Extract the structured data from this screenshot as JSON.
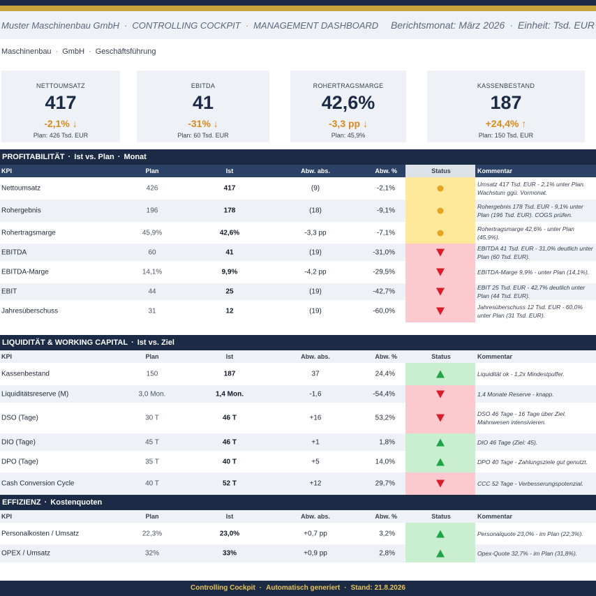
{
  "header": {
    "company": "Muster Maschinenbau GmbH",
    "app": "CONTROLLING COCKPIT",
    "view": "MANAGEMENT DASHBOARD",
    "report_month": "Berichtsmonat: März 2026",
    "unit": "Einheit: Tsd. EUR"
  },
  "breadcrumb": [
    "Maschinenbau",
    "GmbH",
    "Geschäftsführung"
  ],
  "kpi_cards": [
    {
      "label": "NETTOUMSATZ",
      "value": "417",
      "delta": "-2,1% ↓",
      "plan": "Plan: 426 Tsd. EUR"
    },
    {
      "label": "EBITDA",
      "value": "41",
      "delta": "-31% ↓",
      "plan": "Plan: 60 Tsd. EUR"
    },
    {
      "label": "ROHERTRAGSMARGE",
      "value": "42,6%",
      "delta": "-3,3 pp ↓",
      "plan": "Plan: 45,9%"
    },
    {
      "label": "KASSENBESTAND",
      "value": "187",
      "delta": "+24,4% ↑",
      "plan": "Plan: 150 Tsd. EUR"
    }
  ],
  "columns": {
    "kpi": "KPI",
    "plan": "Plan",
    "ist": "Ist",
    "abs": "Abw. abs.",
    "pct": "Abw. %",
    "status": "Status",
    "comment": "Kommentar"
  },
  "sections": {
    "profit": {
      "title": "PROFITABILITÄT",
      "sub1": "Ist vs. Plan",
      "sub2": "Monat",
      "rows": [
        {
          "kpi": "Nettoumsatz",
          "plan": "426",
          "ist": "417",
          "abs": "(9)",
          "pct": "-2,1%",
          "status": "yellow",
          "comment": "Umsatz 417 Tsd. EUR - 2,1% unter Plan. Wachstum ggü. Vormonat."
        },
        {
          "kpi": "Rohergebnis",
          "plan": "196",
          "ist": "178",
          "abs": "(18)",
          "pct": "-9,1%",
          "status": "yellow",
          "comment": "Rohergebnis 178 Tsd. EUR - 9,1% unter Plan (196 Tsd. EUR). COGS prüfen."
        },
        {
          "kpi": "Rohertragsmarge",
          "plan": "45,9%",
          "ist": "42,6%",
          "abs": "-3,3 pp",
          "pct": "-7,1%",
          "status": "yellow",
          "comment": "Rohertragsmarge 42,6% - unter Plan (45,9%)."
        },
        {
          "kpi": "EBITDA",
          "plan": "60",
          "ist": "41",
          "abs": "(19)",
          "pct": "-31,0%",
          "status": "red",
          "comment": "EBITDA 41 Tsd. EUR - 31,0% deutlich unter Plan (60 Tsd. EUR)."
        },
        {
          "kpi": "EBITDA-Marge",
          "plan": "14,1%",
          "ist": "9,9%",
          "abs": "-4,2 pp",
          "pct": "-29,5%",
          "status": "red",
          "comment": "EBITDA-Marge 9,9% - unter Plan (14,1%)."
        },
        {
          "kpi": "EBIT",
          "plan": "44",
          "ist": "25",
          "abs": "(19)",
          "pct": "-42,7%",
          "status": "red",
          "comment": "EBIT 25 Tsd. EUR - 42,7% deutlich unter Plan (44 Tsd. EUR)."
        },
        {
          "kpi": "Jahresüberschuss",
          "plan": "31",
          "ist": "12",
          "abs": "(19)",
          "pct": "-60,0%",
          "status": "red",
          "comment": "Jahresüberschuss 12 Tsd. EUR - 60,0% unter Plan (31 Tsd. EUR)."
        }
      ]
    },
    "liquid": {
      "title": "LIQUIDITÄT & WORKING CAPITAL",
      "sub1": "Ist vs. Ziel",
      "rows": [
        {
          "kpi": "Kassenbestand",
          "plan": "150",
          "ist": "187",
          "abs": "37",
          "pct": "24,4%",
          "status": "green",
          "comment": "Liquidität ok - 1,2x Mindestpuffer."
        },
        {
          "kpi": "Liquiditätsreserve (M)",
          "plan": "3,0 Mon.",
          "ist": "1,4 Mon.",
          "abs": "-1,6",
          "pct": "-54,4%",
          "status": "red",
          "comment": "1,4 Monate Reserve - knapp."
        },
        {
          "kpi": "DSO (Tage)",
          "plan": "30 T",
          "ist": "46 T",
          "abs": "+16",
          "pct": "53,2%",
          "status": "red",
          "comment": "DSO 46 Tage - 16 Tage über Ziel. Mahnwesen intensivieren."
        },
        {
          "kpi": "DIO (Tage)",
          "plan": "45 T",
          "ist": "46 T",
          "abs": "+1",
          "pct": "1,8%",
          "status": "green",
          "comment": "DIO 46 Tage (Ziel: 45)."
        },
        {
          "kpi": "DPO (Tage)",
          "plan": "35 T",
          "ist": "40 T",
          "abs": "+5",
          "pct": "14,0%",
          "status": "green",
          "comment": "DPO 40 Tage - Zahlungsziele gut genutzt."
        },
        {
          "kpi": "Cash Conversion Cycle",
          "plan": "40 T",
          "ist": "52 T",
          "abs": "+12",
          "pct": "29,7%",
          "status": "red",
          "comment": "CCC 52 Tage - Verbesserungspotenzial."
        }
      ]
    },
    "eff": {
      "title": "EFFIZIENZ",
      "sub1": "Kostenquoten",
      "rows": [
        {
          "kpi": "Personalkosten / Umsatz",
          "plan": "22,3%",
          "ist": "23,0%",
          "abs": "+0,7 pp",
          "pct": "3,2%",
          "status": "green",
          "comment": "Personalquote 23,0% - im Plan (22,3%)."
        },
        {
          "kpi": "OPEX / Umsatz",
          "plan": "32%",
          "ist": "33%",
          "abs": "+0,9 pp",
          "pct": "2,8%",
          "status": "green",
          "comment": "Opex-Quote 32,7% - im Plan (31,8%)."
        }
      ]
    }
  },
  "footer": {
    "app": "Controlling Cockpit",
    "mode": "Automatisch generiert",
    "date": "Stand: 21.8.2026"
  },
  "colors": {
    "navy": "#1b2b45",
    "gold": "#c9a43a",
    "warn": "#d98a1e",
    "red": "#d91b2a",
    "green": "#1fa447",
    "yellow": "#fde999"
  }
}
